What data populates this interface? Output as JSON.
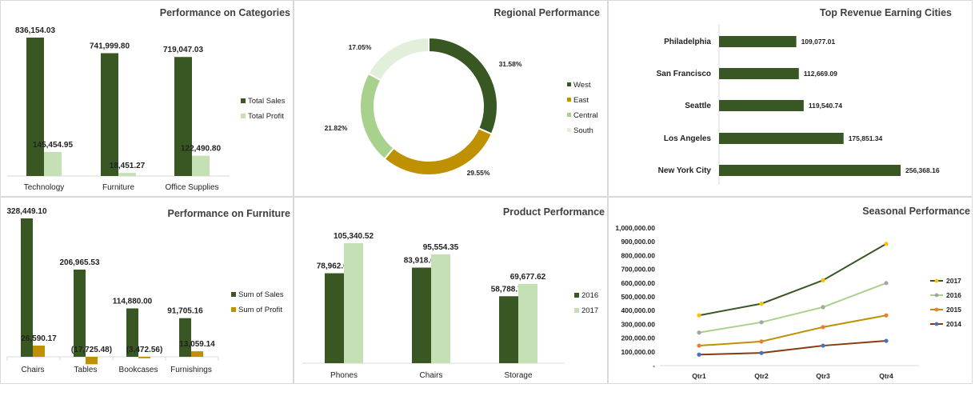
{
  "colors": {
    "dark_green": "#385723",
    "light_green": "#c5e0b4",
    "mid_green": "#a9d18e",
    "pale_green": "#e2efda",
    "gold": "#bf9000",
    "axis": "#d9d9d9",
    "s2017": "#385723",
    "s2016": "#a9d18e",
    "s2015": "#bf9000",
    "s2014": "#843c0c",
    "m2017": "#ffc000",
    "m2016": "#a5a5a5",
    "m2015": "#ed7d31",
    "m2014": "#4472c4"
  },
  "charts": {
    "categories": {
      "title": "Performance on Categories",
      "type": "bar",
      "categories": [
        "Technology",
        "Furniture",
        "Office Supplies"
      ],
      "series": [
        {
          "name": "Total Sales",
          "values": [
            836154.03,
            741999.8,
            719047.03
          ],
          "labels": [
            "836,154.03",
            "741,999.80",
            "719,047.03"
          ],
          "color": "#385723"
        },
        {
          "name": "Total Profit",
          "values": [
            145454.95,
            18451.27,
            122490.8
          ],
          "labels": [
            "145,454.95",
            "18,451.27",
            "122,490.80"
          ],
          "color": "#c5e0b4"
        }
      ]
    },
    "regional": {
      "title": "Regional Performance",
      "type": "pie",
      "slices": [
        {
          "name": "West",
          "value": 31.58,
          "label": "31.58%",
          "color": "#385723"
        },
        {
          "name": "East",
          "value": 29.55,
          "label": "29.55%",
          "color": "#bf9000"
        },
        {
          "name": "Central",
          "value": 21.82,
          "label": "21.82%",
          "color": "#a9d18e"
        },
        {
          "name": "South",
          "value": 17.05,
          "label": "17.05%",
          "color": "#e2efda"
        }
      ]
    },
    "cities": {
      "title": "Top Revenue Earning Cities",
      "type": "bar",
      "orientation": "horizontal",
      "categories": [
        "Philadelphia",
        "San Francisco",
        "Seattle",
        "Los Angeles",
        "New York City"
      ],
      "values": [
        109077.01,
        112669.09,
        119540.74,
        175851.34,
        256368.16
      ],
      "labels": [
        "109,077.01",
        "112,669.09",
        "119,540.74",
        "175,851.34",
        "256,368.16"
      ]
    },
    "furniture": {
      "title": "Performance on Furniture",
      "type": "bar",
      "categories": [
        "Chairs",
        "Tables",
        "Bookcases",
        "Furnishings"
      ],
      "series": [
        {
          "name": "Sum of Sales",
          "values": [
            328449.1,
            206965.53,
            114880.0,
            91705.16
          ],
          "labels": [
            "328,449.10",
            "206,965.53",
            "114,880.00",
            "91,705.16"
          ],
          "color": "#385723"
        },
        {
          "name": "Sum of Profit",
          "values": [
            26590.17,
            -17725.48,
            -3472.56,
            13059.14
          ],
          "labels": [
            "26,590.17",
            "(17,725.48)",
            "(3,472.56)",
            "13,059.14"
          ],
          "color": "#bf9000"
        }
      ]
    },
    "product": {
      "title": "Product Performance",
      "type": "bar",
      "categories": [
        "Phones",
        "Chairs",
        "Storage"
      ],
      "series": [
        {
          "name": "2016",
          "values": [
            78962.03,
            83918.65,
            58788.7
          ],
          "labels": [
            "78,962.03",
            "83,918.65",
            "58,788.70"
          ],
          "color": "#385723"
        },
        {
          "name": "2017",
          "values": [
            105340.52,
            95554.35,
            69677.62
          ],
          "labels": [
            "105,340.52",
            "95,554.35",
            "69,677.62"
          ],
          "color": "#c5e0b4"
        }
      ]
    },
    "seasonal": {
      "title": "Seasonal Performance",
      "type": "line",
      "x": [
        "Qtr1",
        "Qtr2",
        "Qtr3",
        "Qtr4"
      ],
      "ylim": [
        0,
        1000000
      ],
      "yticks": [
        "-",
        "100,000.00",
        "200,000.00",
        "300,000.00",
        "400,000.00",
        "500,000.00",
        "600,000.00",
        "700,000.00",
        "800,000.00",
        "900,000.00",
        "1,000,000.00"
      ],
      "series": [
        {
          "name": "2017",
          "values": [
            365000,
            450000,
            620000,
            885000
          ],
          "color": "#385723",
          "marker": "#ffc000"
        },
        {
          "name": "2016",
          "values": [
            240000,
            315000,
            425000,
            600000
          ],
          "color": "#a9d18e",
          "marker": "#a5a5a5"
        },
        {
          "name": "2015",
          "values": [
            145000,
            175000,
            280000,
            365000
          ],
          "color": "#bf9000",
          "marker": "#ed7d31"
        },
        {
          "name": "2014",
          "values": [
            80000,
            92000,
            145000,
            180000
          ],
          "color": "#843c0c",
          "marker": "#4472c4"
        }
      ]
    }
  }
}
